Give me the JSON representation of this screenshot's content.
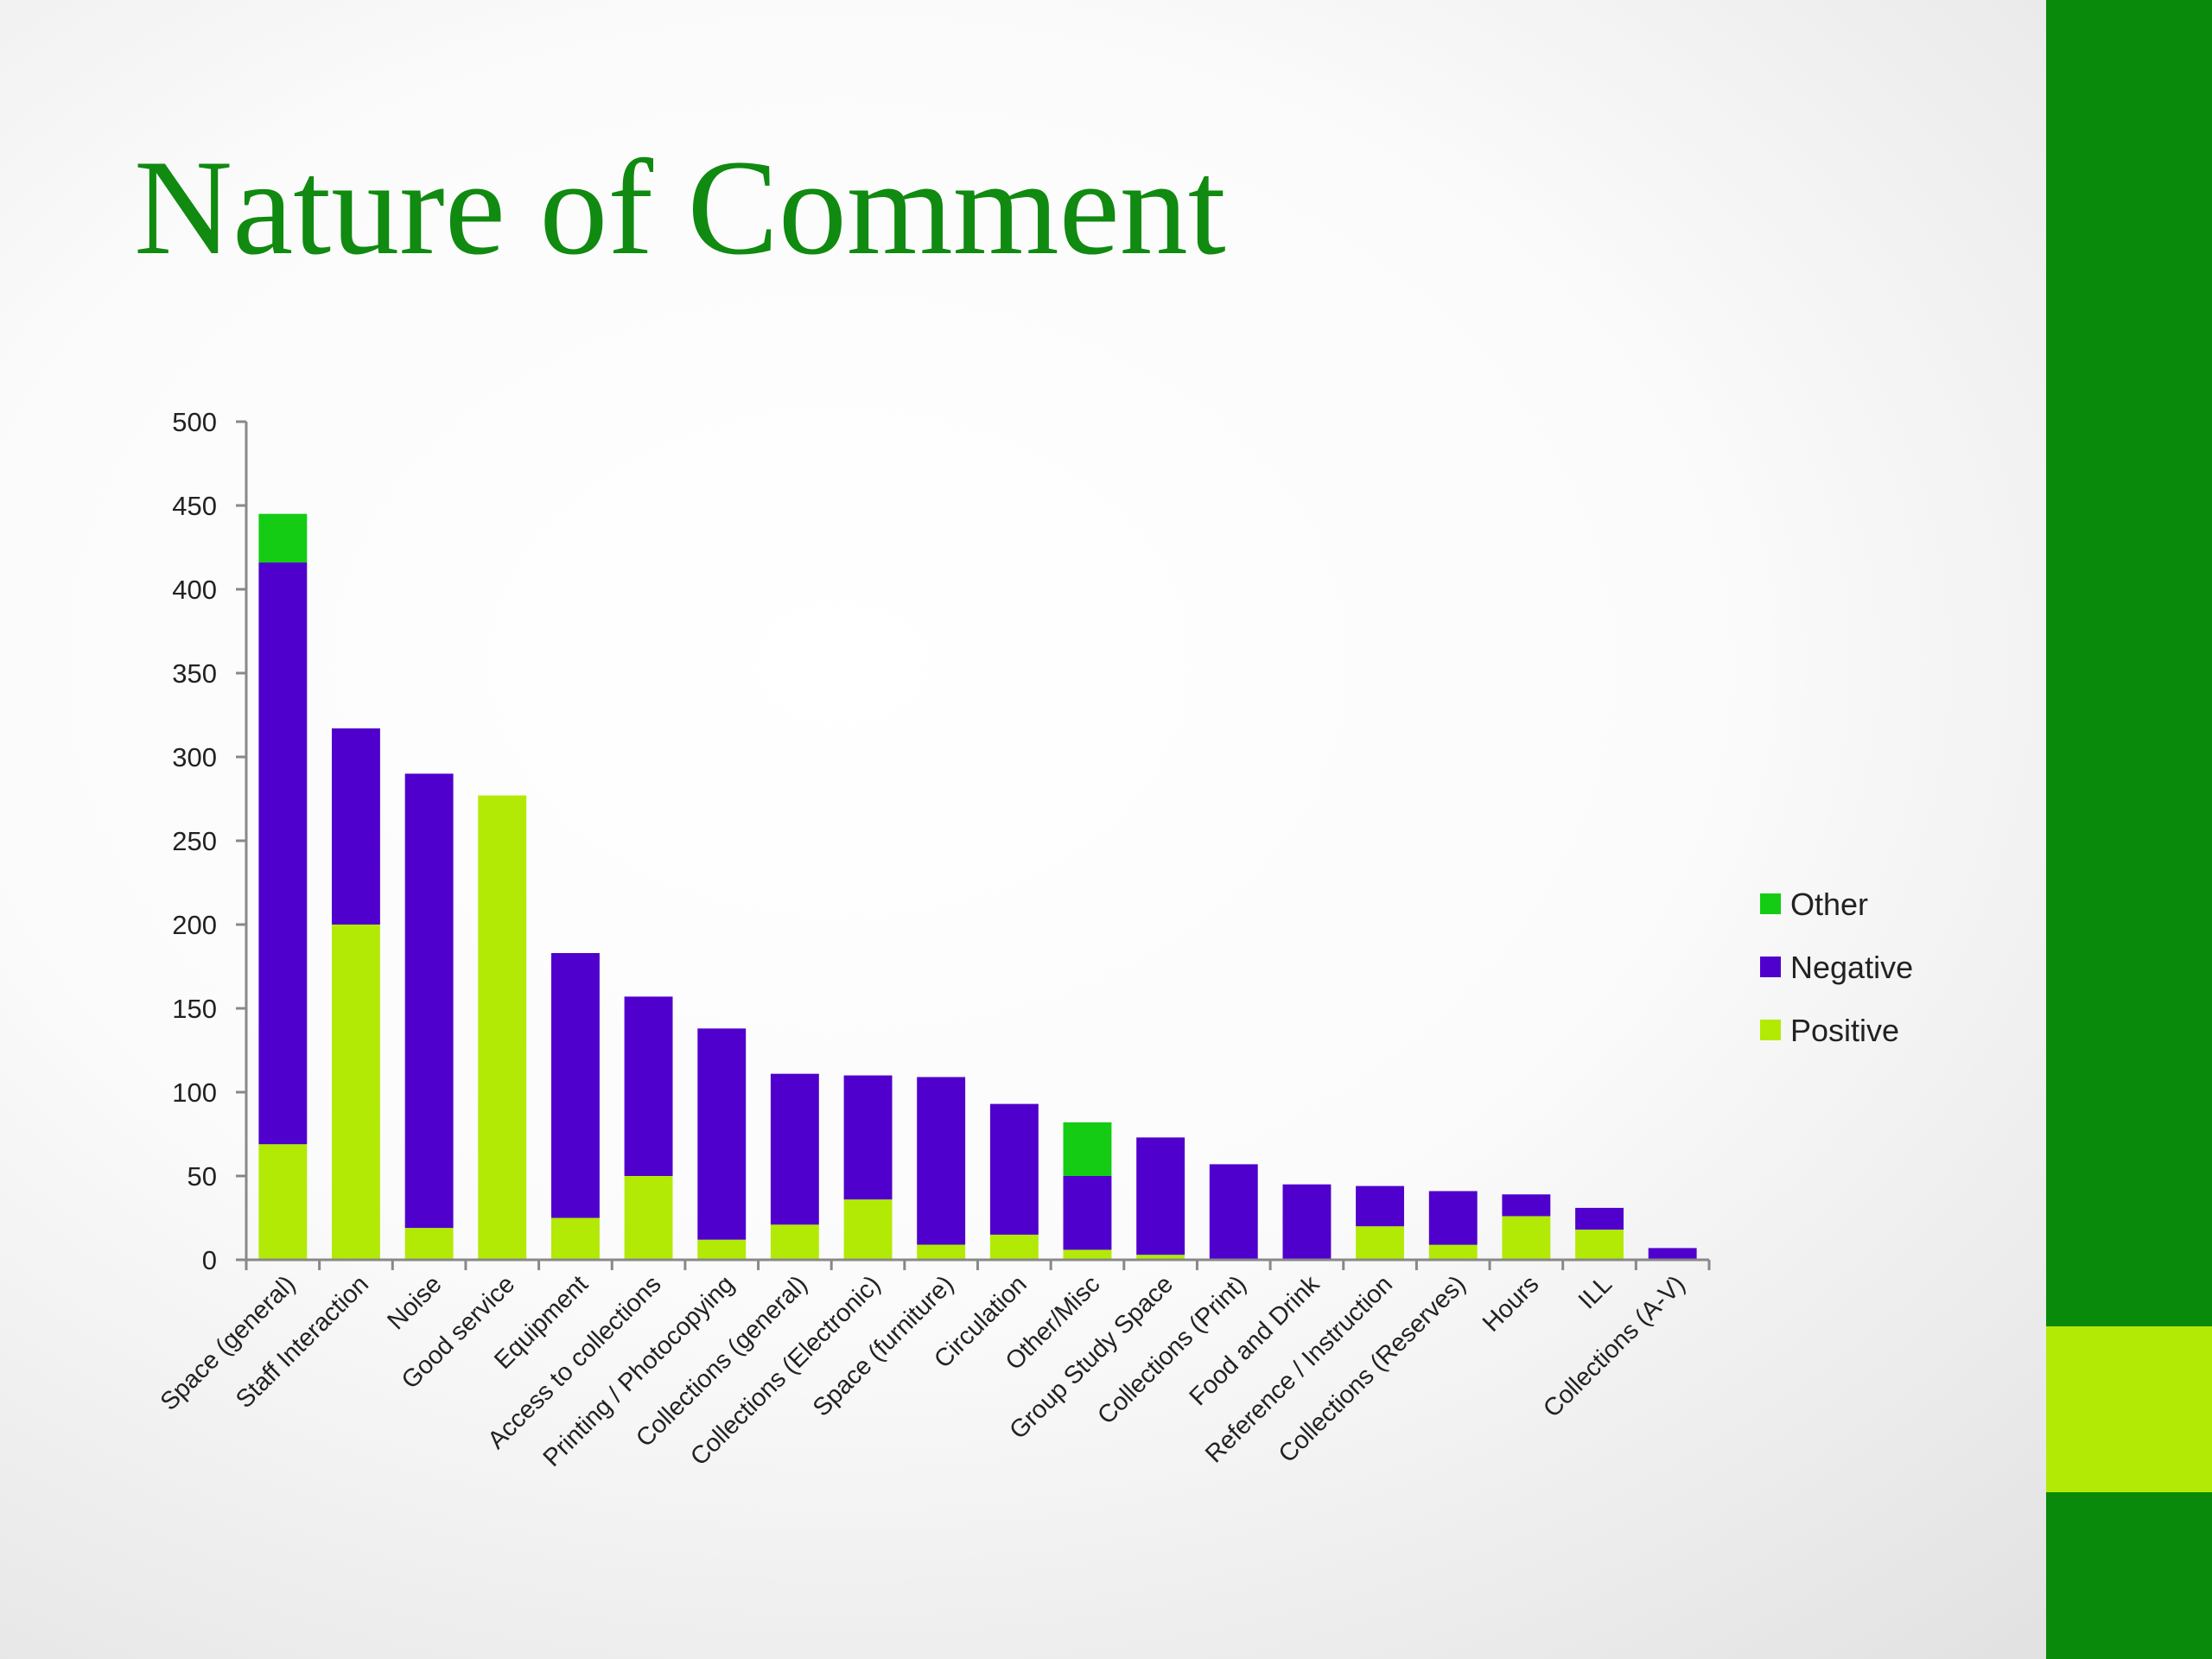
{
  "slide": {
    "title": "Nature of Comment"
  },
  "colors": {
    "title": "#108a10",
    "side_bar": "#0a8a0a",
    "side_accent": "#b2ea06"
  },
  "chart_data": {
    "type": "bar",
    "stacked": true,
    "title": "",
    "xlabel": "",
    "ylabel": "",
    "ylim": [
      0,
      500
    ],
    "yticks": [
      0,
      50,
      100,
      150,
      200,
      250,
      300,
      350,
      400,
      450,
      500
    ],
    "grid": false,
    "legend_position": "right",
    "categories": [
      "Space (general)",
      "Staff Interaction",
      "Noise",
      "Good service",
      "Equipment",
      "Access to collections",
      "Printing / Photocopying",
      "Collections (general)",
      "Collections (Electronic)",
      "Space (furniture)",
      "Circulation",
      "Other/Misc",
      "Group Study Space",
      "Collections (Print)",
      "Food and Drink",
      "Reference / Instruction",
      "Collections (Reserves)",
      "Hours",
      "ILL",
      "Collections (A-V)"
    ],
    "series": [
      {
        "name": "Positive",
        "color": "#b2ea06",
        "values": [
          69,
          200,
          19,
          277,
          25,
          50,
          12,
          21,
          36,
          9,
          15,
          6,
          3,
          0,
          0,
          20,
          9,
          26,
          18,
          0
        ]
      },
      {
        "name": "Negative",
        "color": "#5000cc",
        "values": [
          347,
          117,
          271,
          0,
          158,
          107,
          126,
          90,
          74,
          100,
          78,
          44,
          70,
          57,
          45,
          24,
          32,
          13,
          13,
          7
        ]
      },
      {
        "name": "Other",
        "color": "#14cc14",
        "values": [
          29,
          0,
          0,
          0,
          0,
          0,
          0,
          0,
          0,
          0,
          0,
          32,
          0,
          0,
          0,
          0,
          0,
          0,
          0,
          0
        ]
      }
    ],
    "legend_order": [
      "Other",
      "Negative",
      "Positive"
    ]
  }
}
